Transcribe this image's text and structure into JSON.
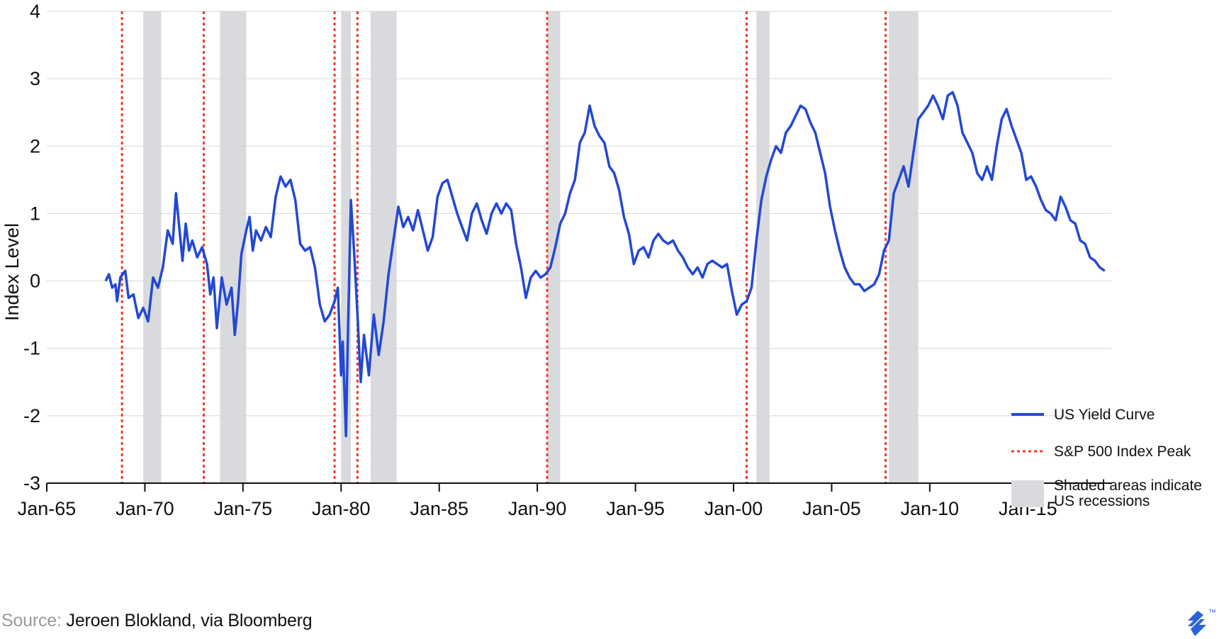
{
  "colors": {
    "line": "#2348d4",
    "peak": "#ef3b2c",
    "recession": "#d9dadd",
    "grid": "#d6d6d6",
    "axis": "#111111",
    "logo": "#2a64d8"
  },
  "source": {
    "key": "Source:",
    "value": "Jeroen Blokland, via Bloomberg"
  },
  "logo": {
    "mark": "™"
  },
  "chart_data": {
    "type": "line",
    "ylabel": "Index Level",
    "ylim": [
      -3,
      4
    ],
    "yticks": [
      -3,
      -2,
      -1,
      0,
      1,
      2,
      3,
      4
    ],
    "xlim": [
      "1965-01",
      "2019-04"
    ],
    "x_tick_labels": [
      "Jan-65",
      "Jan-70",
      "Jan-75",
      "Jan-80",
      "Jan-85",
      "Jan-90",
      "Jan-95",
      "Jan-00",
      "Jan-05",
      "Jan-10",
      "Jan-15"
    ],
    "x_tick_dates": [
      "1965-01",
      "1970-01",
      "1975-01",
      "1980-01",
      "1985-01",
      "1990-01",
      "1995-01",
      "2000-01",
      "2005-01",
      "2010-01",
      "2015-01"
    ],
    "grid": "horizontal",
    "legend_position": "bottom-right",
    "legend": [
      {
        "label": "US Yield Curve",
        "kind": "line"
      },
      {
        "label": "S&P 500 Index Peak",
        "kind": "dotted"
      },
      {
        "label": "Shaded areas indicate\nUS recessions",
        "kind": "area"
      }
    ],
    "recessions": [
      [
        "1969-12",
        "1970-11"
      ],
      [
        "1973-11",
        "1975-03"
      ],
      [
        "1980-01",
        "1980-07"
      ],
      [
        "1981-07",
        "1982-11"
      ],
      [
        "1990-07",
        "1991-03"
      ],
      [
        "2001-03",
        "2001-11"
      ],
      [
        "2007-12",
        "2009-06"
      ]
    ],
    "sp500_peaks": [
      "1968-11",
      "1973-01",
      "1979-09",
      "1980-11",
      "1990-07",
      "2000-09",
      "2007-10"
    ],
    "series": [
      {
        "name": "US Yield Curve",
        "points": [
          [
            "1968-01",
            0.0
          ],
          [
            "1968-03",
            0.1
          ],
          [
            "1968-05",
            -0.1
          ],
          [
            "1968-07",
            -0.05
          ],
          [
            "1968-08",
            -0.3
          ],
          [
            "1968-10",
            0.05
          ],
          [
            "1969-01",
            0.15
          ],
          [
            "1969-03",
            -0.25
          ],
          [
            "1969-06",
            -0.2
          ],
          [
            "1969-09",
            -0.55
          ],
          [
            "1969-12",
            -0.4
          ],
          [
            "1970-03",
            -0.6
          ],
          [
            "1970-06",
            0.05
          ],
          [
            "1970-09",
            -0.1
          ],
          [
            "1970-12",
            0.2
          ],
          [
            "1971-03",
            0.75
          ],
          [
            "1971-06",
            0.55
          ],
          [
            "1971-08",
            1.3
          ],
          [
            "1971-10",
            0.8
          ],
          [
            "1971-12",
            0.3
          ],
          [
            "1972-02",
            0.85
          ],
          [
            "1972-04",
            0.45
          ],
          [
            "1972-06",
            0.6
          ],
          [
            "1972-09",
            0.35
          ],
          [
            "1972-12",
            0.5
          ],
          [
            "1973-03",
            0.25
          ],
          [
            "1973-05",
            -0.2
          ],
          [
            "1973-07",
            0.05
          ],
          [
            "1973-09",
            -0.7
          ],
          [
            "1973-12",
            0.05
          ],
          [
            "1974-03",
            -0.35
          ],
          [
            "1974-06",
            -0.1
          ],
          [
            "1974-08",
            -0.8
          ],
          [
            "1974-10",
            -0.3
          ],
          [
            "1974-12",
            0.4
          ],
          [
            "1975-03",
            0.75
          ],
          [
            "1975-05",
            0.95
          ],
          [
            "1975-07",
            0.45
          ],
          [
            "1975-09",
            0.75
          ],
          [
            "1975-12",
            0.6
          ],
          [
            "1976-03",
            0.8
          ],
          [
            "1976-06",
            0.65
          ],
          [
            "1976-09",
            1.25
          ],
          [
            "1976-12",
            1.55
          ],
          [
            "1977-03",
            1.4
          ],
          [
            "1977-06",
            1.5
          ],
          [
            "1977-09",
            1.2
          ],
          [
            "1977-12",
            0.55
          ],
          [
            "1978-03",
            0.45
          ],
          [
            "1978-06",
            0.5
          ],
          [
            "1978-09",
            0.2
          ],
          [
            "1978-12",
            -0.35
          ],
          [
            "1979-03",
            -0.6
          ],
          [
            "1979-06",
            -0.5
          ],
          [
            "1979-09",
            -0.3
          ],
          [
            "1979-11",
            -0.1
          ],
          [
            "1980-01",
            -1.4
          ],
          [
            "1980-02",
            -0.9
          ],
          [
            "1980-04",
            -2.3
          ],
          [
            "1980-05",
            -1.0
          ],
          [
            "1980-07",
            1.2
          ],
          [
            "1980-09",
            0.4
          ],
          [
            "1980-11",
            -0.5
          ],
          [
            "1981-01",
            -1.5
          ],
          [
            "1981-03",
            -0.8
          ],
          [
            "1981-06",
            -1.4
          ],
          [
            "1981-09",
            -0.5
          ],
          [
            "1981-12",
            -1.1
          ],
          [
            "1982-03",
            -0.6
          ],
          [
            "1982-06",
            0.1
          ],
          [
            "1982-09",
            0.6
          ],
          [
            "1982-12",
            1.1
          ],
          [
            "1983-03",
            0.8
          ],
          [
            "1983-06",
            0.95
          ],
          [
            "1983-09",
            0.75
          ],
          [
            "1983-12",
            1.05
          ],
          [
            "1984-03",
            0.75
          ],
          [
            "1984-06",
            0.45
          ],
          [
            "1984-09",
            0.65
          ],
          [
            "1984-12",
            1.25
          ],
          [
            "1985-03",
            1.45
          ],
          [
            "1985-06",
            1.5
          ],
          [
            "1985-09",
            1.25
          ],
          [
            "1985-12",
            1.0
          ],
          [
            "1986-03",
            0.8
          ],
          [
            "1986-06",
            0.6
          ],
          [
            "1986-09",
            1.0
          ],
          [
            "1986-12",
            1.15
          ],
          [
            "1987-03",
            0.9
          ],
          [
            "1987-06",
            0.7
          ],
          [
            "1987-09",
            1.0
          ],
          [
            "1987-12",
            1.15
          ],
          [
            "1988-03",
            1.0
          ],
          [
            "1988-06",
            1.15
          ],
          [
            "1988-09",
            1.05
          ],
          [
            "1988-12",
            0.55
          ],
          [
            "1989-03",
            0.2
          ],
          [
            "1989-06",
            -0.25
          ],
          [
            "1989-09",
            0.05
          ],
          [
            "1989-12",
            0.15
          ],
          [
            "1990-03",
            0.05
          ],
          [
            "1990-06",
            0.1
          ],
          [
            "1990-09",
            0.2
          ],
          [
            "1990-12",
            0.5
          ],
          [
            "1991-03",
            0.85
          ],
          [
            "1991-06",
            1.0
          ],
          [
            "1991-09",
            1.3
          ],
          [
            "1991-12",
            1.5
          ],
          [
            "1992-03",
            2.05
          ],
          [
            "1992-06",
            2.2
          ],
          [
            "1992-09",
            2.6
          ],
          [
            "1992-12",
            2.3
          ],
          [
            "1993-03",
            2.15
          ],
          [
            "1993-06",
            2.05
          ],
          [
            "1993-09",
            1.7
          ],
          [
            "1993-12",
            1.6
          ],
          [
            "1994-03",
            1.35
          ],
          [
            "1994-06",
            0.95
          ],
          [
            "1994-09",
            0.7
          ],
          [
            "1994-12",
            0.25
          ],
          [
            "1995-03",
            0.45
          ],
          [
            "1995-06",
            0.5
          ],
          [
            "1995-09",
            0.35
          ],
          [
            "1995-12",
            0.6
          ],
          [
            "1996-03",
            0.7
          ],
          [
            "1996-06",
            0.6
          ],
          [
            "1996-09",
            0.55
          ],
          [
            "1996-12",
            0.6
          ],
          [
            "1997-03",
            0.45
          ],
          [
            "1997-06",
            0.35
          ],
          [
            "1997-09",
            0.2
          ],
          [
            "1997-12",
            0.1
          ],
          [
            "1998-03",
            0.2
          ],
          [
            "1998-06",
            0.05
          ],
          [
            "1998-09",
            0.25
          ],
          [
            "1998-12",
            0.3
          ],
          [
            "1999-03",
            0.25
          ],
          [
            "1999-06",
            0.2
          ],
          [
            "1999-09",
            0.25
          ],
          [
            "1999-12",
            -0.15
          ],
          [
            "2000-03",
            -0.5
          ],
          [
            "2000-06",
            -0.35
          ],
          [
            "2000-09",
            -0.3
          ],
          [
            "2000-12",
            -0.1
          ],
          [
            "2001-03",
            0.6
          ],
          [
            "2001-06",
            1.2
          ],
          [
            "2001-09",
            1.55
          ],
          [
            "2001-12",
            1.8
          ],
          [
            "2002-03",
            2.0
          ],
          [
            "2002-06",
            1.9
          ],
          [
            "2002-09",
            2.2
          ],
          [
            "2002-12",
            2.3
          ],
          [
            "2003-03",
            2.45
          ],
          [
            "2003-06",
            2.6
          ],
          [
            "2003-09",
            2.55
          ],
          [
            "2003-12",
            2.35
          ],
          [
            "2004-03",
            2.2
          ],
          [
            "2004-06",
            1.9
          ],
          [
            "2004-09",
            1.6
          ],
          [
            "2004-12",
            1.1
          ],
          [
            "2005-03",
            0.75
          ],
          [
            "2005-06",
            0.45
          ],
          [
            "2005-09",
            0.2
          ],
          [
            "2005-12",
            0.05
          ],
          [
            "2006-03",
            -0.05
          ],
          [
            "2006-06",
            -0.05
          ],
          [
            "2006-09",
            -0.15
          ],
          [
            "2006-12",
            -0.1
          ],
          [
            "2007-03",
            -0.05
          ],
          [
            "2007-06",
            0.1
          ],
          [
            "2007-09",
            0.45
          ],
          [
            "2007-12",
            0.6
          ],
          [
            "2008-03",
            1.3
          ],
          [
            "2008-06",
            1.5
          ],
          [
            "2008-09",
            1.7
          ],
          [
            "2008-12",
            1.4
          ],
          [
            "2009-03",
            1.9
          ],
          [
            "2009-06",
            2.4
          ],
          [
            "2009-09",
            2.5
          ],
          [
            "2009-12",
            2.6
          ],
          [
            "2010-03",
            2.75
          ],
          [
            "2010-06",
            2.6
          ],
          [
            "2010-09",
            2.4
          ],
          [
            "2010-12",
            2.75
          ],
          [
            "2011-03",
            2.8
          ],
          [
            "2011-06",
            2.6
          ],
          [
            "2011-09",
            2.2
          ],
          [
            "2011-12",
            2.05
          ],
          [
            "2012-03",
            1.9
          ],
          [
            "2012-06",
            1.6
          ],
          [
            "2012-09",
            1.5
          ],
          [
            "2012-12",
            1.7
          ],
          [
            "2013-03",
            1.5
          ],
          [
            "2013-06",
            2.0
          ],
          [
            "2013-09",
            2.4
          ],
          [
            "2013-12",
            2.55
          ],
          [
            "2014-03",
            2.3
          ],
          [
            "2014-06",
            2.1
          ],
          [
            "2014-09",
            1.9
          ],
          [
            "2014-12",
            1.5
          ],
          [
            "2015-03",
            1.55
          ],
          [
            "2015-06",
            1.4
          ],
          [
            "2015-09",
            1.2
          ],
          [
            "2015-12",
            1.05
          ],
          [
            "2016-03",
            1.0
          ],
          [
            "2016-06",
            0.9
          ],
          [
            "2016-09",
            1.25
          ],
          [
            "2016-12",
            1.1
          ],
          [
            "2017-03",
            0.9
          ],
          [
            "2017-06",
            0.85
          ],
          [
            "2017-09",
            0.6
          ],
          [
            "2017-12",
            0.55
          ],
          [
            "2018-03",
            0.35
          ],
          [
            "2018-06",
            0.3
          ],
          [
            "2018-09",
            0.2
          ],
          [
            "2018-12",
            0.15
          ]
        ]
      }
    ]
  }
}
